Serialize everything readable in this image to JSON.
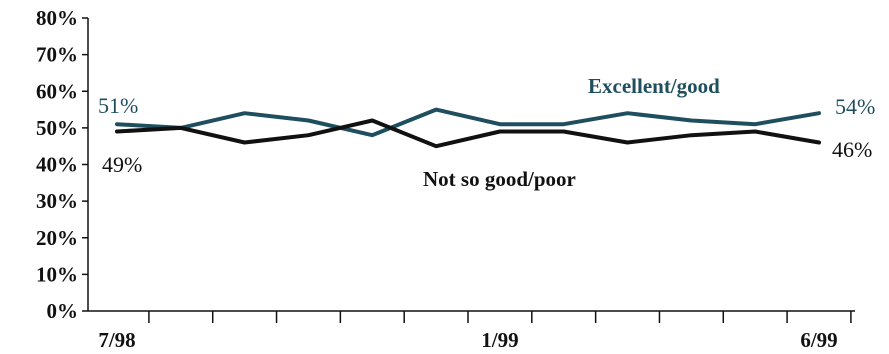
{
  "chart_data": {
    "type": "line",
    "title": "",
    "xlabel": "",
    "ylabel": "",
    "ylim": [
      0,
      80
    ],
    "yticks": [
      "0%",
      "10%",
      "20%",
      "30%",
      "40%",
      "50%",
      "60%",
      "70%",
      "80%"
    ],
    "x_tick_labels": [
      {
        "index": 0,
        "label": "7/98"
      },
      {
        "index": 6,
        "label": "1/99"
      },
      {
        "index": 11,
        "label": "6/99"
      }
    ],
    "point_count": 12,
    "grid": false,
    "series": [
      {
        "name": "Excellent/good",
        "color": "#1f4e5f",
        "values": [
          51,
          50,
          54,
          52,
          48,
          55,
          51,
          51,
          54,
          52,
          51,
          54
        ],
        "start_label": "51%",
        "end_label": "54%"
      },
      {
        "name": "Not so good/poor",
        "color": "#111111",
        "values": [
          49,
          50,
          46,
          48,
          52,
          45,
          49,
          49,
          46,
          48,
          49,
          46
        ],
        "start_label": "49%",
        "end_label": "46%"
      }
    ]
  }
}
